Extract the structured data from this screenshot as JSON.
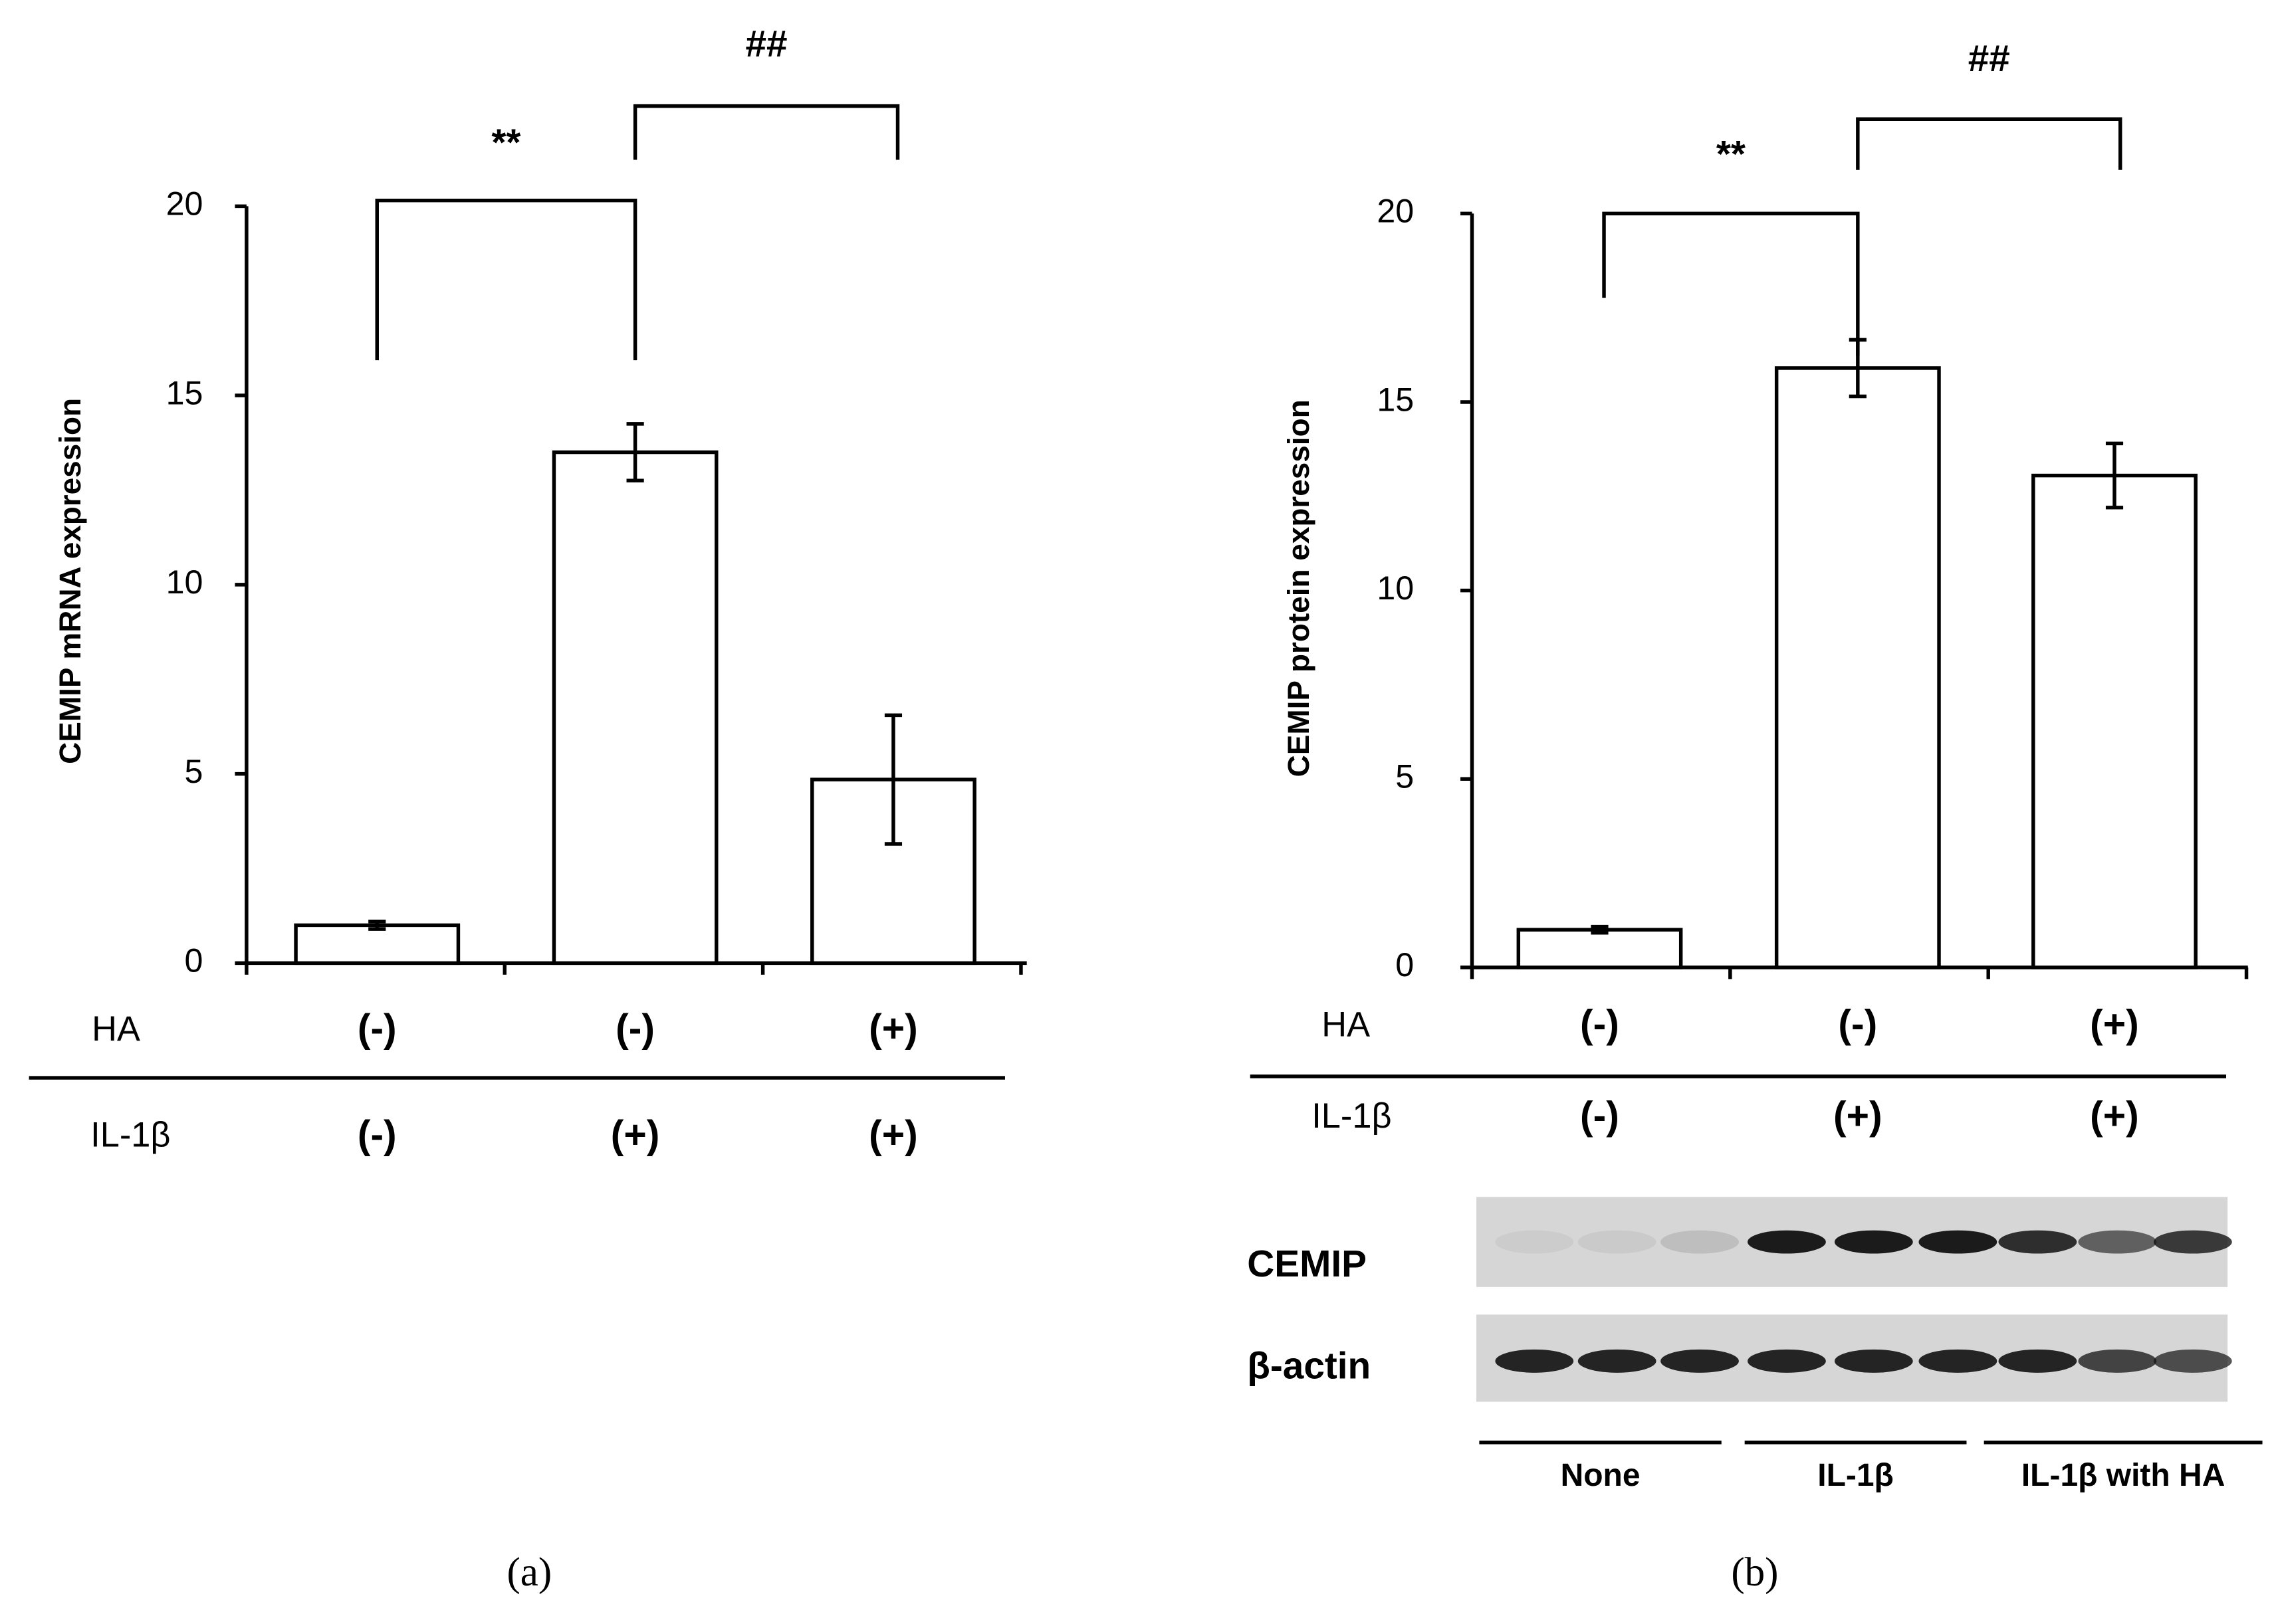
{
  "chart_data": [
    {
      "type": "bar",
      "panel_label": "(a)",
      "ylabel": "CEMIP mRNA expression",
      "values": [
        1,
        13.5,
        4.85
      ],
      "errors": [
        0.1,
        0.75,
        1.7
      ],
      "color": "#ffffff",
      "ylim": [
        0,
        20
      ],
      "yticks": [
        0,
        5,
        10,
        15,
        20
      ],
      "factors": [
        {
          "name": "HA",
          "levels": [
            "(-)",
            "(-)",
            "(+)"
          ]
        },
        {
          "name": "IL-1β",
          "levels": [
            "(-)",
            "(+)",
            "(+)"
          ]
        }
      ],
      "annotations": [
        "**",
        "##"
      ]
    },
    {
      "type": "bar",
      "panel_label": "(b)",
      "ylabel": "CEMIP protein expression",
      "values": [
        1,
        15.9,
        13.05
      ],
      "errors": [
        0.08,
        0.75,
        0.85
      ],
      "color": "#ffffff",
      "ylim": [
        0,
        20
      ],
      "yticks": [
        0,
        5,
        10,
        15,
        20
      ],
      "factors": [
        {
          "name": "HA",
          "levels": [
            "(-)",
            "(-)",
            "(+)"
          ]
        },
        {
          "name": "IL-1β",
          "levels": [
            "(-)",
            "(+)",
            "(+)"
          ]
        }
      ],
      "annotations": [
        "**",
        "##"
      ],
      "blot": {
        "rows": [
          "CEMIP",
          "β-actin"
        ],
        "groups": [
          "None",
          "IL-1β",
          "IL-1β with HA"
        ]
      }
    }
  ]
}
